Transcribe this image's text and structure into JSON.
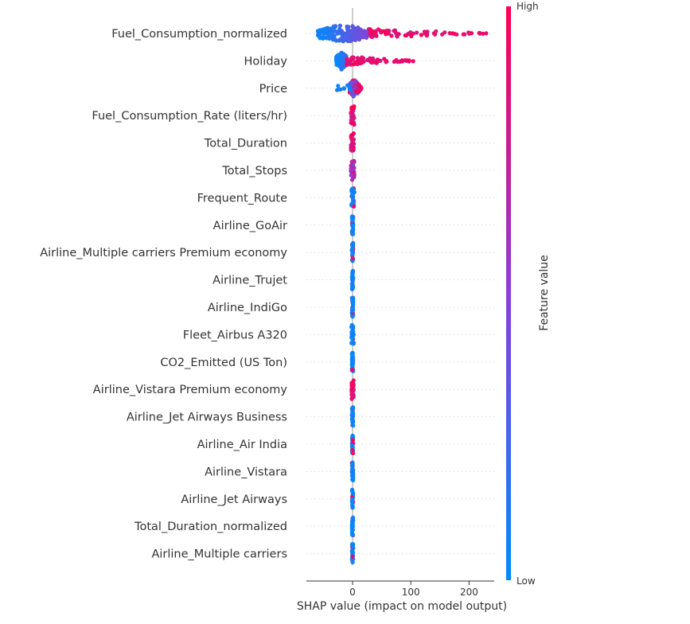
{
  "chart_data": {
    "type": "scatter",
    "subtype": "shap-beeswarm",
    "xlabel": "SHAP value (impact on model output)",
    "xticks": [
      0,
      100,
      200
    ],
    "xlim": [
      -80,
      245
    ],
    "colorbar": {
      "label": "Feature value",
      "high_label": "High",
      "low_label": "Low",
      "low_color": "#008bfb",
      "high_color": "#ff0052"
    },
    "features": [
      {
        "name": "Fuel_Consumption_normalized",
        "min": -60,
        "max": 232,
        "core": [
          -60,
          30
        ],
        "tail_color": "high"
      },
      {
        "name": "Holiday",
        "min": -28,
        "max": 105,
        "core": [
          -28,
          -10
        ],
        "tail_color": "high"
      },
      {
        "name": "Price",
        "min": -30,
        "max": 15,
        "core": [
          -5,
          10
        ],
        "tail_color": "mixed"
      },
      {
        "name": "Fuel_Consumption_Rate (liters/hr)",
        "min": -3,
        "max": 3,
        "core": [
          -3,
          3
        ],
        "tail_color": "high"
      },
      {
        "name": "Total_Duration",
        "min": -3,
        "max": 3,
        "core": [
          -3,
          3
        ],
        "tail_color": "high"
      },
      {
        "name": "Total_Stops",
        "min": -3,
        "max": 3,
        "core": [
          -3,
          3
        ],
        "tail_color": "mixed"
      },
      {
        "name": "Frequent_Route",
        "min": -2,
        "max": 3,
        "core": [
          -2,
          2
        ],
        "tail_color": "low"
      },
      {
        "name": "Airline_GoAir",
        "min": -1,
        "max": 1,
        "core": [
          -1,
          1
        ],
        "tail_color": "low"
      },
      {
        "name": "Airline_Multiple carriers Premium economy",
        "min": -1,
        "max": 1,
        "core": [
          -1,
          1
        ],
        "tail_color": "low"
      },
      {
        "name": "Airline_Trujet",
        "min": -1,
        "max": 1,
        "core": [
          -1,
          1
        ],
        "tail_color": "low"
      },
      {
        "name": "Airline_IndiGo",
        "min": -1,
        "max": 1,
        "core": [
          -1,
          1
        ],
        "tail_color": "low"
      },
      {
        "name": "Fleet_Airbus A320",
        "min": -2,
        "max": 2,
        "core": [
          -2,
          2
        ],
        "tail_color": "low"
      },
      {
        "name": "CO2_Emitted (US Ton)",
        "min": -1,
        "max": 1,
        "core": [
          -1,
          1
        ],
        "tail_color": "low"
      },
      {
        "name": "Airline_Vistara Premium economy",
        "min": -2,
        "max": 2,
        "core": [
          -2,
          2
        ],
        "tail_color": "high"
      },
      {
        "name": "Airline_Jet Airways Business",
        "min": -1,
        "max": 1,
        "core": [
          -1,
          1
        ],
        "tail_color": "low"
      },
      {
        "name": "Airline_Air India",
        "min": -1,
        "max": 1,
        "core": [
          -1,
          1
        ],
        "tail_color": "low"
      },
      {
        "name": "Airline_Vistara",
        "min": -1,
        "max": 1,
        "core": [
          -1,
          1
        ],
        "tail_color": "low"
      },
      {
        "name": "Airline_Jet Airways",
        "min": -1,
        "max": 1,
        "core": [
          -1,
          1
        ],
        "tail_color": "low"
      },
      {
        "name": "Total_Duration_normalized",
        "min": -1,
        "max": 1,
        "core": [
          -1,
          1
        ],
        "tail_color": "low"
      },
      {
        "name": "Airline_Multiple carriers",
        "min": -1,
        "max": 1,
        "core": [
          -1,
          1
        ],
        "tail_color": "low"
      }
    ]
  }
}
